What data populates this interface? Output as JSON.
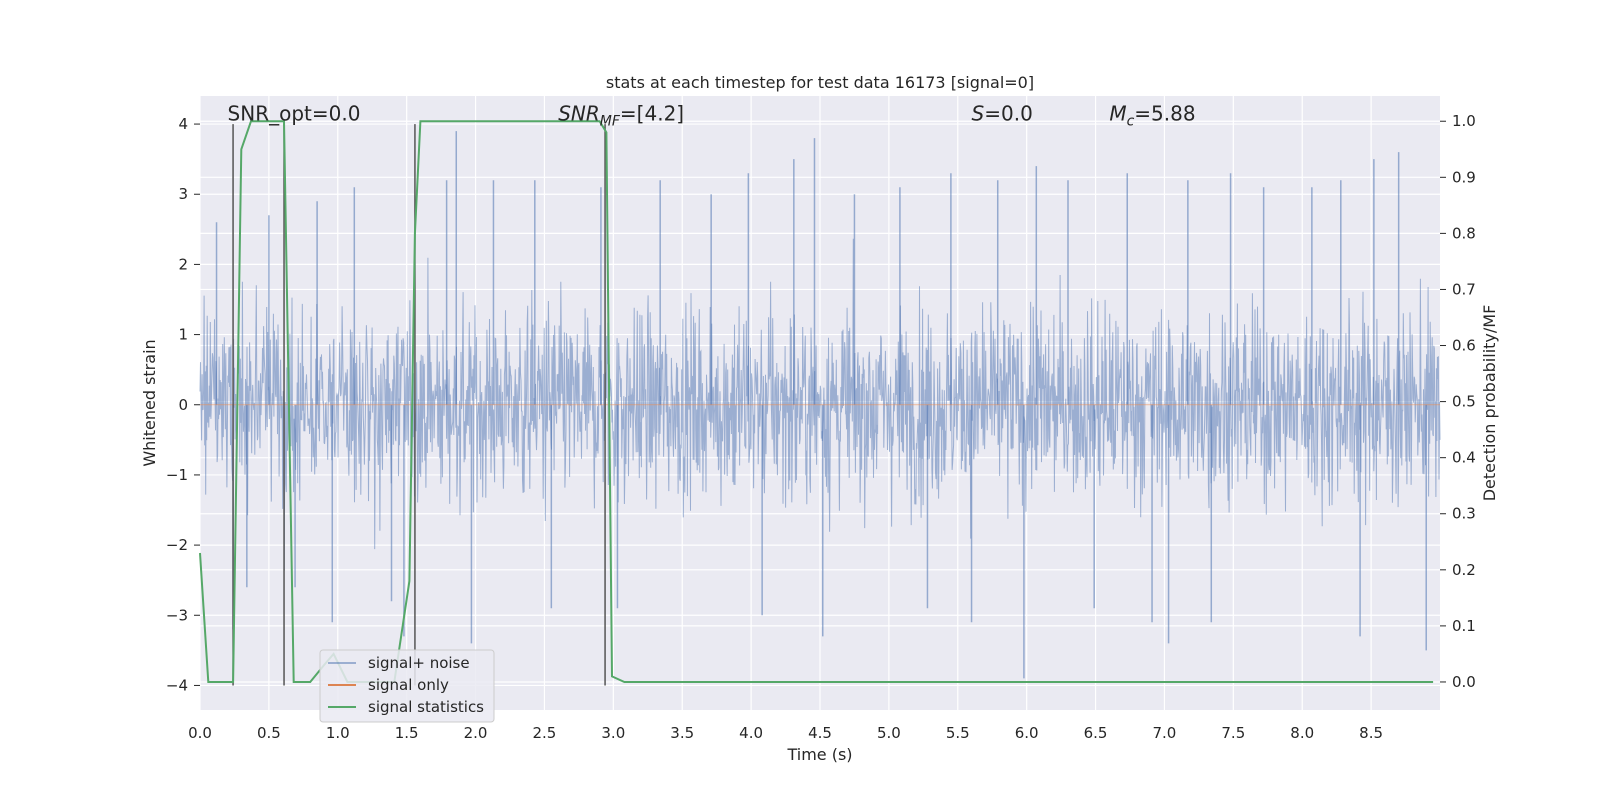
{
  "chart_data": {
    "type": "line",
    "title": "stats at each timestep for test data 16173 [signal=0]",
    "xlabel": "Time (s)",
    "ylabel": "Whitened strain",
    "y2label": "Detection probability/MF",
    "xlim": [
      0,
      9.0
    ],
    "ylim": [
      -4.35,
      4.4
    ],
    "y2lim": [
      -0.05,
      1.045
    ],
    "xticks": [
      0.0,
      0.5,
      1.0,
      1.5,
      2.0,
      2.5,
      3.0,
      3.5,
      4.0,
      4.5,
      5.0,
      5.5,
      6.0,
      6.5,
      7.0,
      7.5,
      8.0,
      8.5
    ],
    "xtick_labels": [
      "0.0",
      "0.5",
      "1.0",
      "1.5",
      "2.0",
      "2.5",
      "3.0",
      "3.5",
      "4.0",
      "4.5",
      "5.0",
      "5.5",
      "6.0",
      "6.5",
      "7.0",
      "7.5",
      "8.0",
      "8.5"
    ],
    "yticks": [
      -4,
      -3,
      -2,
      -1,
      0,
      1,
      2,
      3,
      4
    ],
    "ytick_labels": [
      "−4",
      "−3",
      "−2",
      "−1",
      "0",
      "1",
      "2",
      "3",
      "4"
    ],
    "y2ticks": [
      0.0,
      0.1,
      0.2,
      0.3,
      0.4,
      0.5,
      0.6,
      0.7,
      0.8,
      0.9,
      1.0
    ],
    "y2tick_labels": [
      "0.0",
      "0.1",
      "0.2",
      "0.3",
      "0.4",
      "0.5",
      "0.6",
      "0.7",
      "0.8",
      "0.9",
      "1.0"
    ],
    "grid": true,
    "legend_placement": "lower-left",
    "annotations": [
      {
        "text": "SNR_opt=0.0",
        "x": 0.2,
        "y": 4.05
      },
      {
        "text": "SNR",
        "sub": "MF",
        "suffix": "=[4.2]",
        "italic_main": true,
        "x": 2.6,
        "y": 4.05
      },
      {
        "text": "S",
        "suffix": "=0.0",
        "italic_main": true,
        "x": 5.6,
        "y": 4.05
      },
      {
        "text": "M",
        "sub": "c",
        "suffix": "=5.88",
        "italic_main": true,
        "x": 6.6,
        "y": 4.05
      }
    ],
    "series": [
      {
        "name": "signal+ noise",
        "color": "#4c72b0",
        "axis": "left",
        "style": "noise",
        "x_range": [
          0.0,
          9.0
        ],
        "spike_peaks": [
          {
            "x": 0.12,
            "y": 2.6
          },
          {
            "x": 0.24,
            "y": -3.2
          },
          {
            "x": 0.34,
            "y": -2.6
          },
          {
            "x": 0.5,
            "y": 2.7
          },
          {
            "x": 0.69,
            "y": -2.6
          },
          {
            "x": 0.85,
            "y": 2.9
          },
          {
            "x": 0.96,
            "y": -3.1
          },
          {
            "x": 1.12,
            "y": 3.1
          },
          {
            "x": 1.39,
            "y": -2.8
          },
          {
            "x": 1.48,
            "y": -3.3
          },
          {
            "x": 1.79,
            "y": 3.2
          },
          {
            "x": 1.86,
            "y": 3.9
          },
          {
            "x": 1.97,
            "y": -3.4
          },
          {
            "x": 2.13,
            "y": 3.2
          },
          {
            "x": 2.43,
            "y": 3.2
          },
          {
            "x": 2.55,
            "y": -2.9
          },
          {
            "x": 2.91,
            "y": 3.1
          },
          {
            "x": 3.03,
            "y": -2.9
          },
          {
            "x": 3.34,
            "y": 3.2
          },
          {
            "x": 3.71,
            "y": 3.0
          },
          {
            "x": 3.98,
            "y": 3.3
          },
          {
            "x": 4.08,
            "y": -3.0
          },
          {
            "x": 4.31,
            "y": 3.5
          },
          {
            "x": 4.46,
            "y": 3.8
          },
          {
            "x": 4.52,
            "y": -3.3
          },
          {
            "x": 4.75,
            "y": 3.0
          },
          {
            "x": 5.08,
            "y": 3.1
          },
          {
            "x": 5.28,
            "y": -2.9
          },
          {
            "x": 5.45,
            "y": 3.3
          },
          {
            "x": 5.6,
            "y": -3.1
          },
          {
            "x": 5.79,
            "y": 3.2
          },
          {
            "x": 5.98,
            "y": -3.9
          },
          {
            "x": 6.07,
            "y": 3.4
          },
          {
            "x": 6.3,
            "y": 3.2
          },
          {
            "x": 6.49,
            "y": -2.9
          },
          {
            "x": 6.73,
            "y": 3.3
          },
          {
            "x": 6.91,
            "y": -3.1
          },
          {
            "x": 7.03,
            "y": -3.4
          },
          {
            "x": 7.17,
            "y": 3.2
          },
          {
            "x": 7.34,
            "y": -3.1
          },
          {
            "x": 7.48,
            "y": 3.3
          },
          {
            "x": 7.72,
            "y": 3.1
          },
          {
            "x": 8.07,
            "y": 3.1
          },
          {
            "x": 8.28,
            "y": 3.2
          },
          {
            "x": 8.42,
            "y": -3.3
          },
          {
            "x": 8.52,
            "y": 3.5
          },
          {
            "x": 8.7,
            "y": 3.6
          },
          {
            "x": 8.9,
            "y": -3.5
          }
        ]
      },
      {
        "name": "signal only",
        "color": "#dd8452",
        "axis": "left",
        "x": [
          0.0,
          9.0
        ],
        "y": [
          0.0,
          0.0
        ]
      },
      {
        "name": "signal statistics",
        "color": "#55a868",
        "axis": "right",
        "x": [
          0.0,
          0.06,
          0.24,
          0.3,
          0.37,
          0.61,
          0.68,
          0.76,
          0.8,
          0.9,
          0.97,
          1.07,
          1.41,
          1.52,
          1.56,
          1.6,
          1.62,
          2.9,
          2.95,
          2.99,
          3.08,
          3.3,
          8.95
        ],
        "y": [
          0.23,
          0.0,
          0.0,
          0.95,
          1.0,
          1.0,
          0.0,
          0.0,
          0.0,
          0.03,
          0.05,
          0.0,
          0.0,
          0.18,
          0.8,
          1.0,
          1.0,
          1.0,
          0.98,
          0.01,
          0.0,
          0.0,
          0.0
        ]
      }
    ],
    "vertical_markers": [
      0.24,
      0.61,
      1.56,
      2.94
    ]
  }
}
